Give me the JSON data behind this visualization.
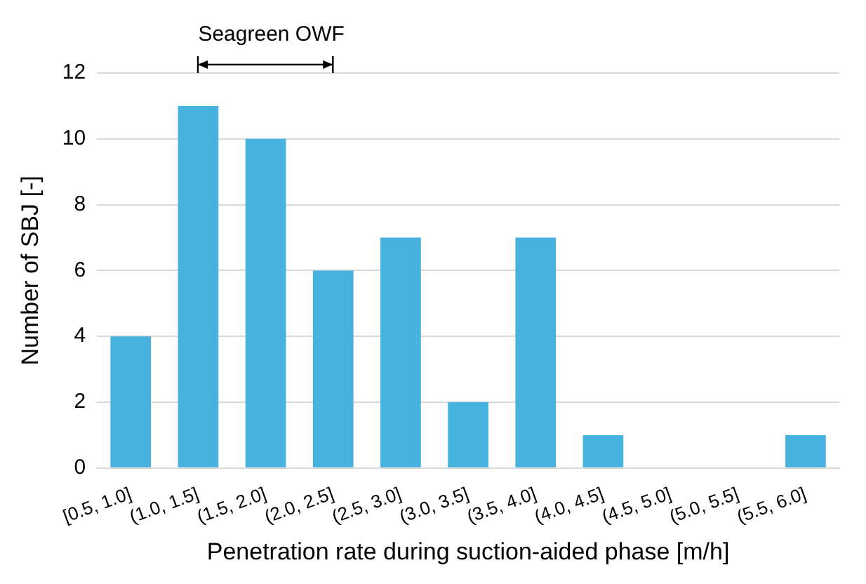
{
  "chart_data": {
    "type": "bar",
    "xlabel": "Penetration rate during suction-aided phase [m/h]",
    "ylabel": "Number of SBJ [-]",
    "categories": [
      "[0.5, 1.0]",
      "(1.0, 1.5]",
      "(1.5, 2.0]",
      "(2.0, 2.5]",
      "(2.5, 3.0]",
      "(3.0, 3.5]",
      "(3.5, 4.0]",
      "(4.0, 4.5]",
      "(4.5, 5.0]",
      "(5.0, 5.5]",
      "(5.5, 6.0]"
    ],
    "values": [
      4,
      11,
      10,
      6,
      7,
      2,
      7,
      1,
      0,
      0,
      1
    ],
    "color": "#47b1e0",
    "ylim": [
      0,
      12
    ],
    "yticks": [
      0,
      2,
      4,
      6,
      8,
      10,
      12
    ],
    "grid": "y",
    "legend": false,
    "annotations": [
      "Seagreen OWF"
    ]
  }
}
